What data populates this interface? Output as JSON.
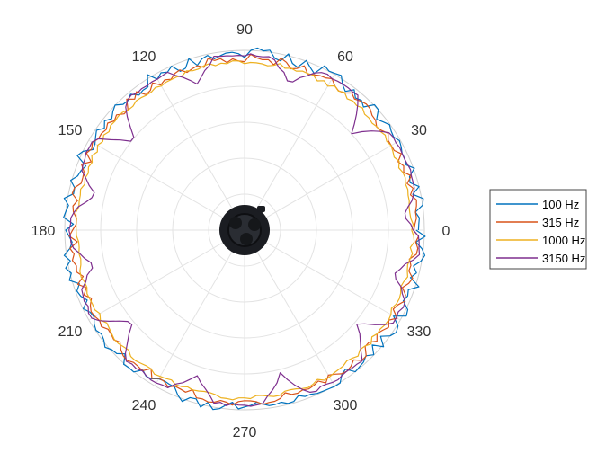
{
  "chart_data": {
    "type": "polar-line",
    "theta_unit": "degrees",
    "theta_ticks": [
      "0",
      "30",
      "60",
      "90",
      "120",
      "150",
      "180",
      "210",
      "240",
      "270",
      "300",
      "330"
    ],
    "r_range": [
      0,
      1
    ],
    "grid": true,
    "legend_position": "right",
    "series": [
      {
        "name": "100 Hz",
        "color": "#0072BD",
        "base_r": 0.985,
        "noise": 0.035,
        "seed": 11,
        "dips": []
      },
      {
        "name": "315 Hz",
        "color": "#D95319",
        "base_r": 0.955,
        "noise": 0.025,
        "seed": 23,
        "dips": []
      },
      {
        "name": "1000 Hz",
        "color": "#EDB120",
        "base_r": 0.935,
        "noise": 0.012,
        "seed": 37,
        "dips": []
      },
      {
        "name": "3150 Hz",
        "color": "#7E2F8E",
        "base_r": 0.975,
        "noise": 0.008,
        "seed": 51,
        "dips": [
          {
            "angle": 5,
            "depth": 0.09,
            "width": 5
          },
          {
            "angle": 42,
            "depth": 0.17,
            "width": 5
          },
          {
            "angle": 73,
            "depth": 0.12,
            "width": 5
          },
          {
            "angle": 108,
            "depth": 0.12,
            "width": 5
          },
          {
            "angle": 141,
            "depth": 0.19,
            "width": 5
          },
          {
            "angle": 167,
            "depth": 0.13,
            "width": 5
          },
          {
            "angle": 193,
            "depth": 0.11,
            "width": 5
          },
          {
            "angle": 219,
            "depth": 0.18,
            "width": 5
          },
          {
            "angle": 252,
            "depth": 0.13,
            "width": 5
          },
          {
            "angle": 284,
            "depth": 0.15,
            "width": 5
          },
          {
            "angle": 320,
            "depth": 0.16,
            "width": 5
          },
          {
            "angle": 344,
            "depth": 0.11,
            "width": 5
          }
        ]
      }
    ]
  }
}
